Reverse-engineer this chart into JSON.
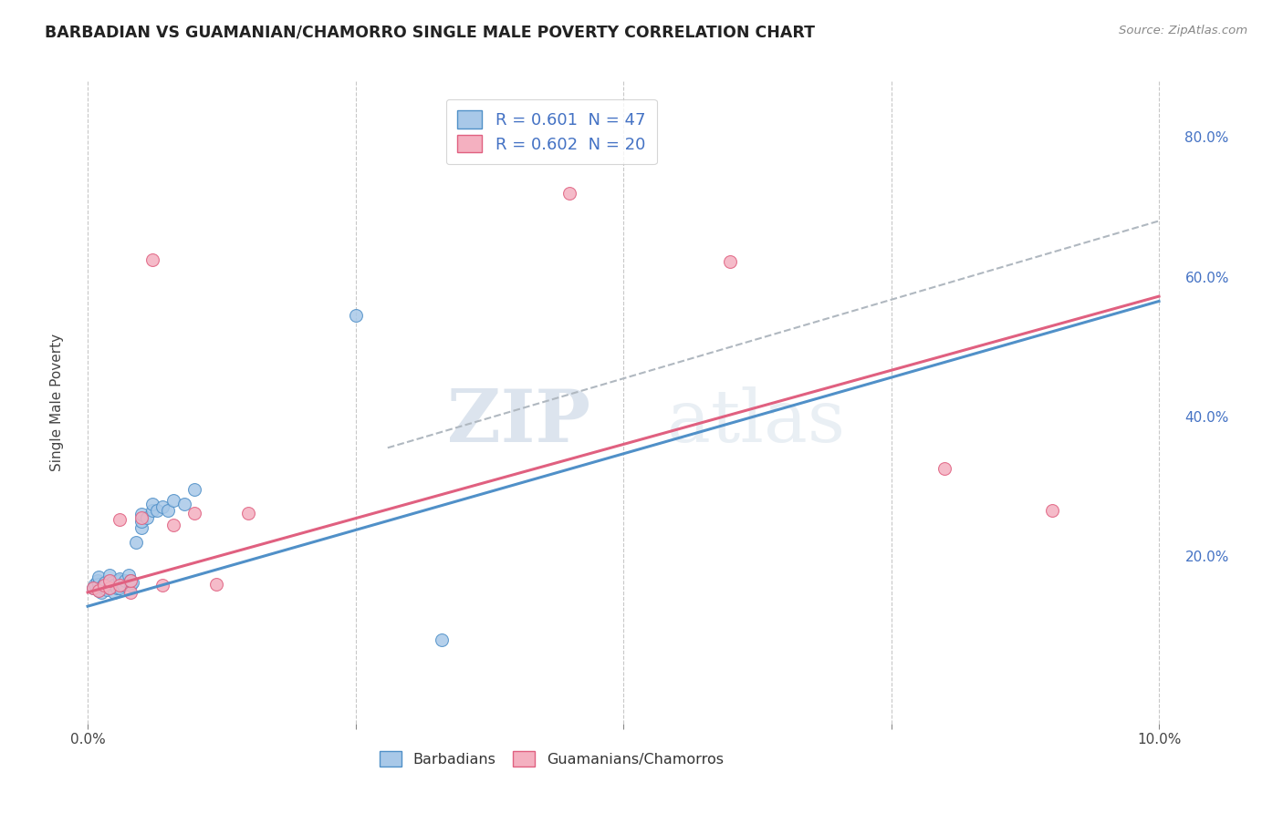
{
  "title": "BARBADIAN VS GUAMANIAN/CHAMORRO SINGLE MALE POVERTY CORRELATION CHART",
  "source": "Source: ZipAtlas.com",
  "ylabel": "Single Male Poverty",
  "xlim": [
    -0.001,
    0.102
  ],
  "ylim": [
    -0.04,
    0.88
  ],
  "xticks": [
    0.0,
    0.025,
    0.05,
    0.075,
    0.1
  ],
  "xtick_labels": [
    "0.0%",
    "",
    "",
    "",
    "10.0%"
  ],
  "yticks_right": [
    0.2,
    0.4,
    0.6,
    0.8
  ],
  "ytick_right_labels": [
    "20.0%",
    "40.0%",
    "60.0%",
    "80.0%"
  ],
  "legend_r1": "R = 0.601  N = 47",
  "legend_r2": "R = 0.602  N = 20",
  "barbadian_color": "#a8c8e8",
  "guamanian_color": "#f4b0c0",
  "trendline_blue_color": "#5090c8",
  "trendline_pink_color": "#e06080",
  "dashed_line_color": "#b0b8c0",
  "watermark_zip": "ZIP",
  "watermark_atlas": "atlas",
  "background_color": "#ffffff",
  "grid_color": "#c8c8c8",
  "barbadians_x": [
    0.0005,
    0.0007,
    0.0009,
    0.001,
    0.001,
    0.001,
    0.0012,
    0.0013,
    0.0014,
    0.0015,
    0.0016,
    0.0017,
    0.0018,
    0.002,
    0.002,
    0.002,
    0.002,
    0.0022,
    0.0023,
    0.0025,
    0.0025,
    0.0027,
    0.003,
    0.003,
    0.003,
    0.003,
    0.0033,
    0.0035,
    0.0038,
    0.004,
    0.004,
    0.0042,
    0.0045,
    0.005,
    0.005,
    0.005,
    0.0055,
    0.006,
    0.006,
    0.0065,
    0.007,
    0.0075,
    0.008,
    0.009,
    0.01,
    0.025,
    0.033
  ],
  "barbadians_y": [
    0.155,
    0.16,
    0.165,
    0.15,
    0.16,
    0.17,
    0.155,
    0.148,
    0.158,
    0.155,
    0.162,
    0.158,
    0.152,
    0.155,
    0.16,
    0.165,
    0.172,
    0.158,
    0.162,
    0.148,
    0.158,
    0.155,
    0.16,
    0.165,
    0.155,
    0.168,
    0.158,
    0.165,
    0.172,
    0.158,
    0.165,
    0.162,
    0.22,
    0.24,
    0.25,
    0.26,
    0.255,
    0.265,
    0.275,
    0.265,
    0.27,
    0.265,
    0.28,
    0.275,
    0.295,
    0.545,
    0.08
  ],
  "guamanians_x": [
    0.0005,
    0.001,
    0.0015,
    0.002,
    0.002,
    0.003,
    0.003,
    0.004,
    0.004,
    0.005,
    0.006,
    0.007,
    0.008,
    0.01,
    0.012,
    0.015,
    0.045,
    0.06,
    0.08,
    0.09
  ],
  "guamanians_y": [
    0.155,
    0.15,
    0.158,
    0.155,
    0.165,
    0.158,
    0.252,
    0.148,
    0.165,
    0.255,
    0.625,
    0.158,
    0.245,
    0.262,
    0.16,
    0.262,
    0.72,
    0.622,
    0.325,
    0.265
  ],
  "blue_line_x": [
    0.0,
    0.1
  ],
  "blue_line_y": [
    0.128,
    0.565
  ],
  "pink_line_x": [
    0.0,
    0.1
  ],
  "pink_line_y": [
    0.148,
    0.572
  ],
  "dashed_line_x": [
    0.028,
    0.1
  ],
  "dashed_line_y": [
    0.355,
    0.68
  ]
}
